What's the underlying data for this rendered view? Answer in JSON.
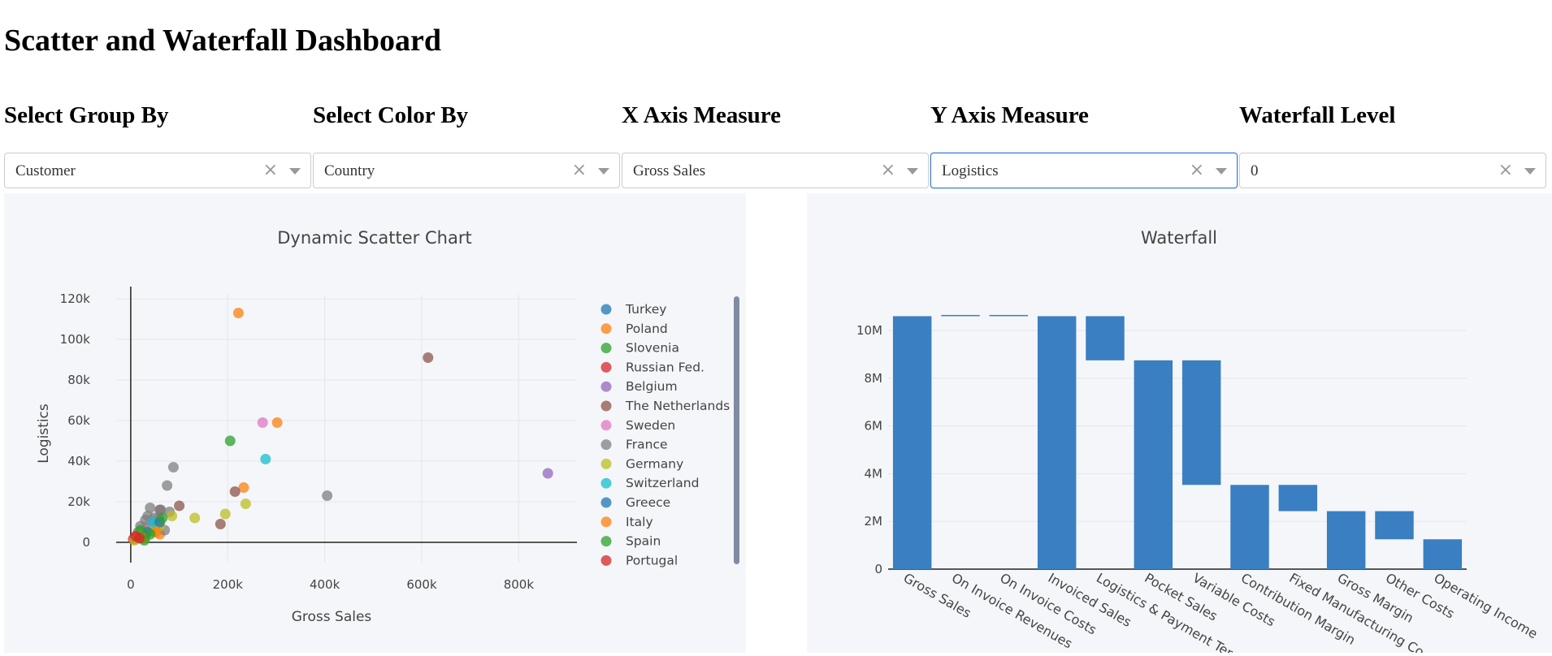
{
  "page": {
    "title": "Scatter and Waterfall Dashboard"
  },
  "controls": [
    {
      "label": "Select Group By",
      "value": "Customer",
      "focused": false
    },
    {
      "label": "Select Color By",
      "value": "Country",
      "focused": false
    },
    {
      "label": "X Axis Measure",
      "value": "Gross Sales",
      "focused": false
    },
    {
      "label": "Y Axis Measure",
      "value": "Logistics",
      "focused": true
    },
    {
      "label": "Waterfall Level",
      "value": "0",
      "focused": false
    }
  ],
  "chart_data": [
    {
      "type": "scatter",
      "title": "Dynamic Scatter Chart",
      "xlabel": "Gross Sales",
      "ylabel": "Logistics",
      "xlim": [
        -30000,
        920000
      ],
      "ylim": [
        -10000,
        122000
      ],
      "xticks": [
        0,
        200000,
        400000,
        600000,
        800000
      ],
      "xtick_labels": [
        "0",
        "200k",
        "400k",
        "600k",
        "800k"
      ],
      "yticks": [
        0,
        20000,
        40000,
        60000,
        80000,
        100000,
        120000
      ],
      "ytick_labels": [
        "0",
        "20k",
        "40k",
        "60k",
        "80k",
        "100k",
        "120k"
      ],
      "grid": true,
      "legend_position": "right",
      "series": [
        {
          "name": "Turkey",
          "color": "#1f77b4",
          "points": [
            [
              10000,
              2000
            ],
            [
              22000,
              5000
            ]
          ]
        },
        {
          "name": "Poland",
          "color": "#ff7f0e",
          "points": [
            [
              222000,
              113000
            ],
            [
              302000,
              59000
            ],
            [
              233000,
              27000
            ],
            [
              45000,
              9000
            ],
            [
              30000,
              3000
            ],
            [
              60000,
              4000
            ]
          ]
        },
        {
          "name": "Slovenia",
          "color": "#2ca02c",
          "points": [
            [
              205000,
              50000
            ],
            [
              15000,
              3000
            ],
            [
              42000,
              6000
            ]
          ]
        },
        {
          "name": "Russian Fed.",
          "color": "#d62728",
          "points": [
            [
              12000,
              3000
            ],
            [
              5000,
              1500
            ]
          ]
        },
        {
          "name": "Belgium",
          "color": "#9467bd",
          "points": [
            [
              860000,
              34000
            ],
            [
              58000,
              12000
            ]
          ]
        },
        {
          "name": "The Netherlands",
          "color": "#8c564b",
          "points": [
            [
              613000,
              91000
            ],
            [
              215000,
              25000
            ],
            [
              100000,
              18000
            ],
            [
              185000,
              9000
            ],
            [
              60000,
              16000
            ],
            [
              40000,
              7000
            ]
          ]
        },
        {
          "name": "Sweden",
          "color": "#e377c2",
          "points": [
            [
              272000,
              59000
            ],
            [
              35000,
              8000
            ]
          ]
        },
        {
          "name": "France",
          "color": "#7f7f7f",
          "points": [
            [
              405000,
              23000
            ],
            [
              88000,
              37000
            ],
            [
              75000,
              28000
            ],
            [
              40000,
              17000
            ],
            [
              62000,
              16000
            ],
            [
              30000,
              11000
            ],
            [
              20000,
              8000
            ],
            [
              48000,
              12000
            ],
            [
              80000,
              15000
            ],
            [
              15000,
              5000
            ],
            [
              25000,
              4000
            ],
            [
              55000,
              9000
            ],
            [
              35000,
              13000
            ],
            [
              10000,
              2000
            ],
            [
              70000,
              6000
            ]
          ]
        },
        {
          "name": "Germany",
          "color": "#bcbd22",
          "points": [
            [
              237000,
              19000
            ],
            [
              195000,
              14000
            ],
            [
              132000,
              12000
            ],
            [
              85000,
              13000
            ],
            [
              45000,
              6000
            ],
            [
              20000,
              4000
            ],
            [
              60000,
              8000
            ],
            [
              30000,
              2000
            ],
            [
              8000,
              1000
            ]
          ]
        },
        {
          "name": "Switzerland",
          "color": "#17becf",
          "points": [
            [
              278000,
              41000
            ],
            [
              45000,
              10000
            ]
          ]
        },
        {
          "name": "Greece",
          "color": "#1f77b4",
          "points": [
            [
              35000,
              5000
            ],
            [
              60000,
              10000
            ]
          ]
        },
        {
          "name": "Italy",
          "color": "#ff7f0e",
          "points": [
            [
              52000,
              5000
            ],
            [
              25000,
              2000
            ],
            [
              15000,
              3000
            ]
          ]
        },
        {
          "name": "Spain",
          "color": "#2ca02c",
          "points": [
            [
              65000,
              12000
            ],
            [
              40000,
              4000
            ],
            [
              20000,
              6000
            ],
            [
              28000,
              1000
            ]
          ]
        },
        {
          "name": "Portugal",
          "color": "#d62728",
          "points": [
            [
              10000,
              3000
            ],
            [
              18000,
              2000
            ]
          ]
        }
      ]
    },
    {
      "type": "bar",
      "subtype": "waterfall",
      "title": "Waterfall",
      "ylim": [
        0,
        11500000
      ],
      "yticks": [
        0,
        2000000,
        4000000,
        6000000,
        8000000,
        10000000
      ],
      "ytick_labels": [
        "0",
        "2M",
        "4M",
        "6M",
        "8M",
        "10M"
      ],
      "color": "#3a7fc1",
      "categories": [
        "Gross Sales",
        "On Invoice Revenues",
        "On Invoice Costs",
        "Invoiced Sales",
        "Logistics & Payment Ter",
        "Pocket Sales",
        "Variable Costs",
        "Contribution Margin",
        "Fixed Manufacturing Co",
        "Gross Margin",
        "Other Costs",
        "Operating Income"
      ],
      "bars": [
        {
          "base": 0,
          "top": 10600000
        },
        {
          "base": 10600000,
          "top": 10600000
        },
        {
          "base": 10600000,
          "top": 10640000
        },
        {
          "base": 0,
          "top": 10600000
        },
        {
          "base": 8750000,
          "top": 10600000
        },
        {
          "base": 0,
          "top": 8750000
        },
        {
          "base": 3530000,
          "top": 8750000
        },
        {
          "base": 0,
          "top": 3530000
        },
        {
          "base": 2430000,
          "top": 3530000
        },
        {
          "base": 0,
          "top": 2430000
        },
        {
          "base": 1250000,
          "top": 2430000
        },
        {
          "base": 0,
          "top": 1250000
        }
      ]
    }
  ]
}
